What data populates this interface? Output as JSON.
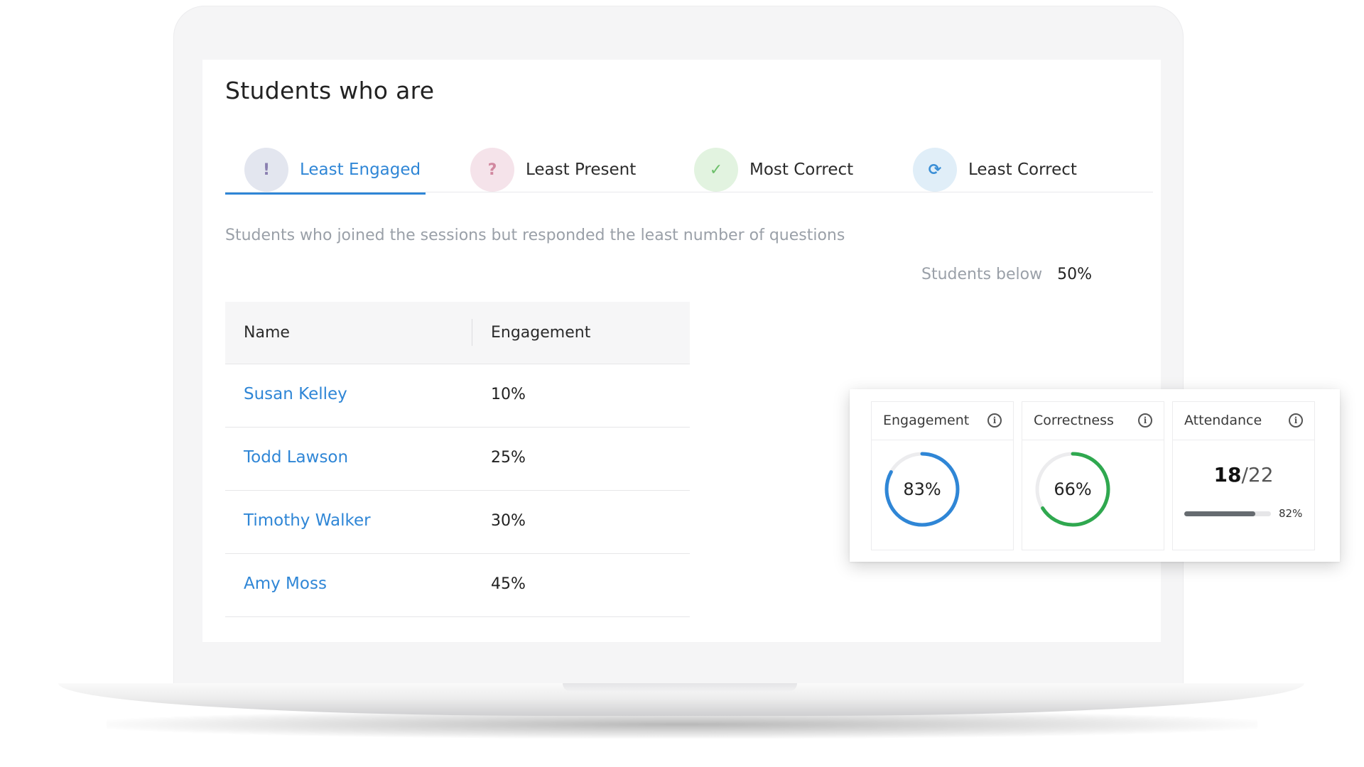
{
  "header": {
    "title": "Students who are"
  },
  "tabs": [
    {
      "label": "Least Engaged",
      "icon": "exclamation-icon",
      "glyph": "!",
      "active": true
    },
    {
      "label": "Least Present",
      "icon": "question-icon",
      "glyph": "?",
      "active": false
    },
    {
      "label": "Most Correct",
      "icon": "check-icon",
      "glyph": "✓",
      "active": false
    },
    {
      "label": "Least Correct",
      "icon": "refresh-icon",
      "glyph": "⟳",
      "active": false
    }
  ],
  "description": "Students who joined the sessions but responded the least number of questions",
  "threshold": {
    "label": "Students below",
    "value": "50%"
  },
  "table": {
    "columns": [
      "Name",
      "Engagement"
    ],
    "rows": [
      {
        "name": "Susan Kelley",
        "engagement": "10%"
      },
      {
        "name": "Todd Lawson",
        "engagement": "25%"
      },
      {
        "name": "Timothy Walker",
        "engagement": "30%"
      },
      {
        "name": "Amy Moss",
        "engagement": "45%"
      }
    ]
  },
  "stats": {
    "engagement": {
      "title": "Engagement",
      "value": "83%",
      "fraction": 0.83,
      "color": "#2f86d6"
    },
    "correctness": {
      "title": "Correctness",
      "value": "66%",
      "fraction": 0.66,
      "color": "#2fa84f"
    },
    "attendance": {
      "title": "Attendance",
      "present": "18",
      "total": "/22",
      "percent": "82%",
      "fraction": 0.82
    }
  },
  "colors": {
    "accent": "#2f86d6",
    "success": "#2fa84f",
    "muted": "#9aa0a8"
  }
}
